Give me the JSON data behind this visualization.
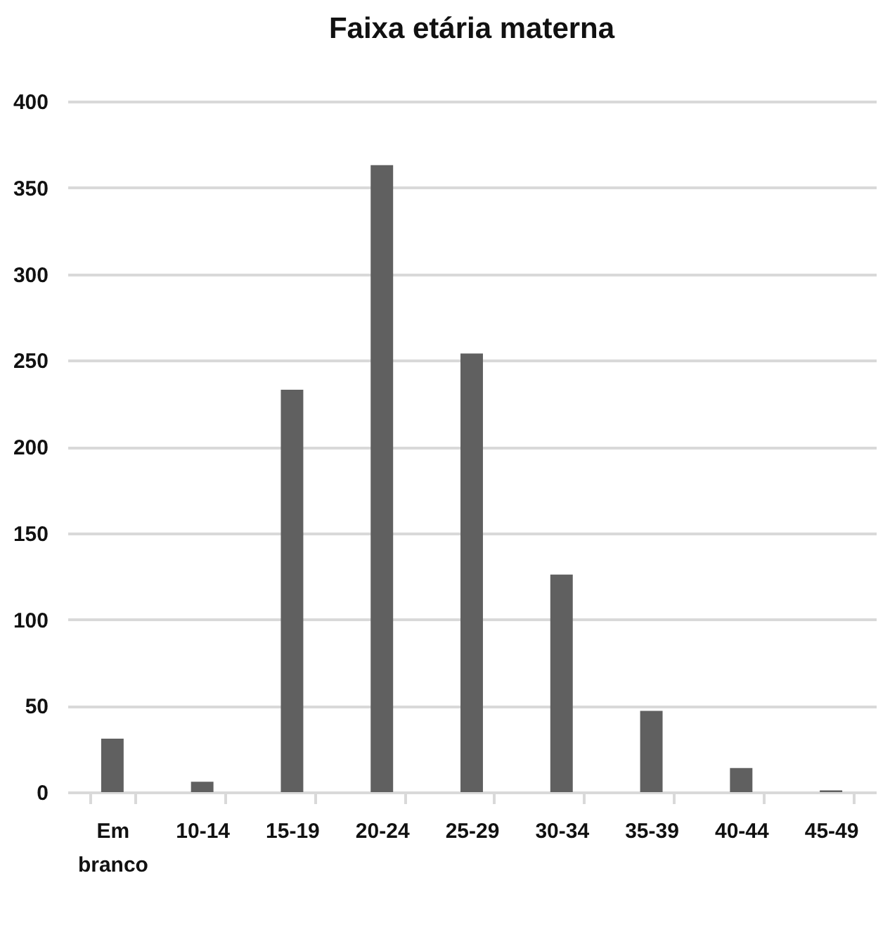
{
  "chart_data": {
    "type": "bar",
    "title": "Faixa etária materna",
    "categories": [
      "Em branco",
      "10-14",
      "15-19",
      "20-24",
      "25-29",
      "30-34",
      "35-39",
      "40-44",
      "45-49"
    ],
    "values": [
      31,
      6,
      233,
      363,
      254,
      126,
      47,
      14,
      1
    ],
    "color": "#606060",
    "ylim": [
      0,
      400
    ],
    "yticks": [
      0,
      50,
      100,
      150,
      200,
      250,
      300,
      350,
      400
    ],
    "grid": "y"
  }
}
